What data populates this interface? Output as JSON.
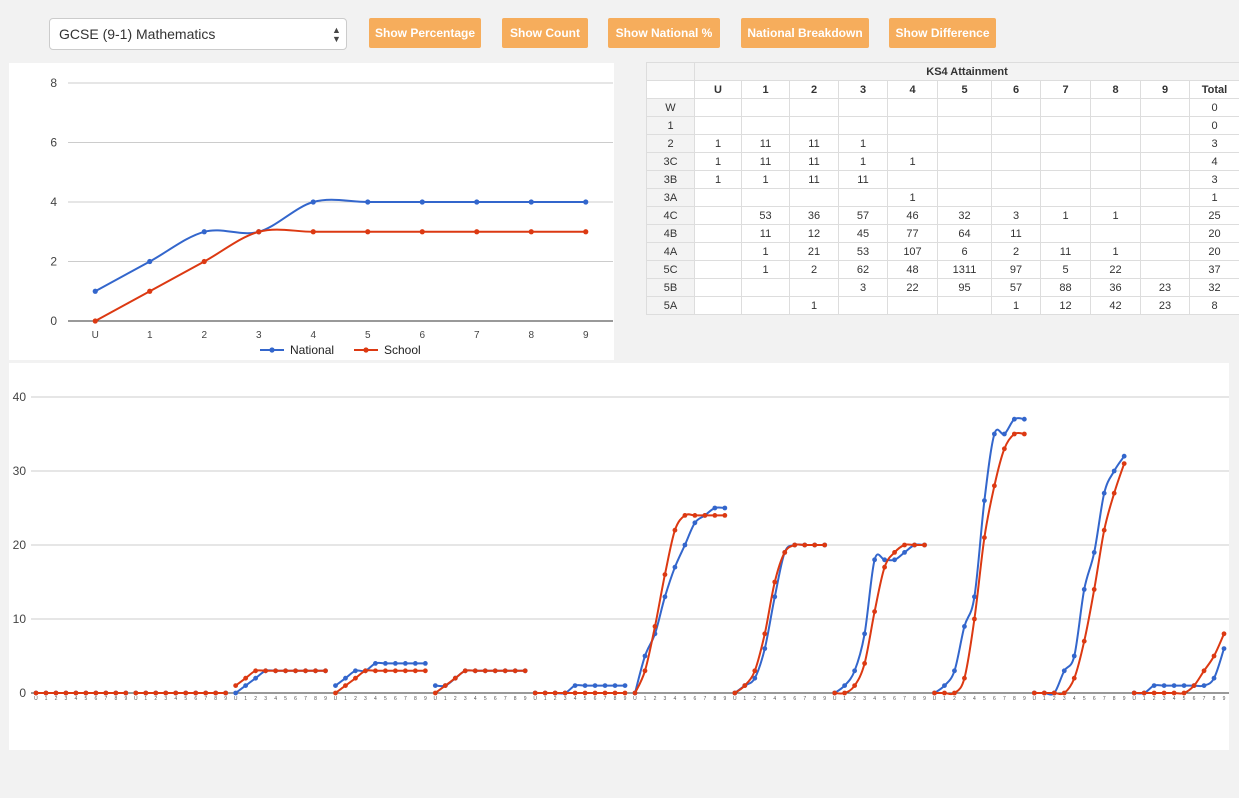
{
  "toolbar": {
    "subject_select": "GCSE (9-1) Mathematics",
    "buttons": [
      "Show Percentage",
      "Show Count",
      "Show National %",
      "National Breakdown",
      "Show Difference"
    ]
  },
  "colors": {
    "national": "#3366cc",
    "school": "#dc3912",
    "button": "#f6ad5c",
    "grid": "#cccccc"
  },
  "table": {
    "title": "KS4 Attainment",
    "columns": [
      "U",
      "1",
      "2",
      "3",
      "4",
      "5",
      "6",
      "7",
      "8",
      "9",
      "Total"
    ],
    "rows": [
      {
        "label": "W",
        "cells": [
          "",
          "",
          "",
          "",
          "",
          "",
          "",
          "",
          "",
          "",
          "0"
        ]
      },
      {
        "label": "1",
        "cells": [
          "",
          "",
          "",
          "",
          "",
          "",
          "",
          "",
          "",
          "",
          "0"
        ]
      },
      {
        "label": "2",
        "cells": [
          "1",
          "11",
          "11",
          "1",
          "",
          "",
          "",
          "",
          "",
          "",
          "3"
        ]
      },
      {
        "label": "3C",
        "cells": [
          "1",
          "11",
          "11",
          "1",
          "1",
          "",
          "",
          "",
          "",
          "",
          "4"
        ]
      },
      {
        "label": "3B",
        "cells": [
          "1",
          "1",
          "11",
          "11",
          "",
          "",
          "",
          "",
          "",
          "",
          "3"
        ]
      },
      {
        "label": "3A",
        "cells": [
          "",
          "",
          "",
          "",
          "1",
          "",
          "",
          "",
          "",
          "",
          "1"
        ]
      },
      {
        "label": "4C",
        "cells": [
          "",
          "53",
          "36",
          "57",
          "46",
          "32",
          "3",
          "1",
          "1",
          "",
          "25"
        ]
      },
      {
        "label": "4B",
        "cells": [
          "",
          "11",
          "12",
          "45",
          "77",
          "64",
          "11",
          "",
          "",
          "",
          "20"
        ]
      },
      {
        "label": "4A",
        "cells": [
          "",
          "1",
          "21",
          "53",
          "107",
          "6",
          "2",
          "11",
          "1",
          "",
          "20"
        ]
      },
      {
        "label": "5C",
        "cells": [
          "",
          "1",
          "2",
          "62",
          "48",
          "1311",
          "97",
          "5",
          "22",
          "",
          "37"
        ]
      },
      {
        "label": "5B",
        "cells": [
          "",
          "",
          "",
          "3",
          "22",
          "95",
          "57",
          "88",
          "36",
          "23",
          "32"
        ]
      },
      {
        "label": "5A",
        "cells": [
          "",
          "",
          "1",
          "",
          "",
          "",
          "1",
          "12",
          "42",
          "23",
          "8"
        ]
      }
    ]
  },
  "chart_data": [
    {
      "type": "line",
      "categories": [
        "U",
        "1",
        "2",
        "3",
        "4",
        "5",
        "6",
        "7",
        "8",
        "9"
      ],
      "ylim": [
        0,
        8
      ],
      "yticks": [
        "0",
        "2",
        "4",
        "6",
        "8"
      ],
      "grid": true,
      "legend_position": "bottom",
      "series": [
        {
          "name": "National",
          "values": [
            1,
            2,
            3,
            3,
            4,
            4,
            4,
            4,
            4,
            4
          ]
        },
        {
          "name": "School",
          "values": [
            0,
            1,
            2,
            3,
            3,
            3,
            3,
            3,
            3,
            3
          ]
        }
      ]
    },
    {
      "type": "line",
      "groups": 12,
      "categories": [
        "U",
        "1",
        "2",
        "3",
        "4",
        "5",
        "6",
        "7",
        "8",
        "9"
      ],
      "ylim": [
        0,
        40
      ],
      "yticks": [
        "0",
        "10",
        "20",
        "30",
        "40"
      ],
      "grid": true,
      "series": [
        {
          "name": "National",
          "groups": [
            [
              0,
              0,
              0,
              0,
              0,
              0,
              0,
              0,
              0,
              0
            ],
            [
              0,
              0,
              0,
              0,
              0,
              0,
              0,
              0,
              0,
              0
            ],
            [
              0,
              1,
              2,
              3,
              3,
              3,
              3,
              3,
              3,
              3
            ],
            [
              1,
              2,
              3,
              3,
              4,
              4,
              4,
              4,
              4,
              4
            ],
            [
              1,
              1,
              2,
              3,
              3,
              3,
              3,
              3,
              3,
              3
            ],
            [
              0,
              0,
              0,
              0,
              1,
              1,
              1,
              1,
              1,
              1
            ],
            [
              0,
              5,
              8,
              13,
              17,
              20,
              23,
              24,
              25,
              25
            ],
            [
              0,
              1,
              2,
              6,
              13,
              19,
              20,
              20,
              20,
              20
            ],
            [
              0,
              1,
              3,
              8,
              18,
              18,
              18,
              19,
              20,
              20
            ],
            [
              0,
              1,
              3,
              9,
              13,
              26,
              35,
              35,
              37,
              37
            ],
            [
              0,
              0,
              0,
              3,
              5,
              14,
              19,
              27,
              30,
              32
            ],
            [
              0,
              0,
              1,
              1,
              1,
              1,
              1,
              1,
              2,
              6
            ]
          ]
        },
        {
          "name": "School",
          "groups": [
            [
              0,
              0,
              0,
              0,
              0,
              0,
              0,
              0,
              0,
              0
            ],
            [
              0,
              0,
              0,
              0,
              0,
              0,
              0,
              0,
              0,
              0
            ],
            [
              1,
              2,
              3,
              3,
              3,
              3,
              3,
              3,
              3,
              3
            ],
            [
              0,
              1,
              2,
              3,
              3,
              3,
              3,
              3,
              3,
              3
            ],
            [
              0,
              1,
              2,
              3,
              3,
              3,
              3,
              3,
              3,
              3
            ],
            [
              0,
              0,
              0,
              0,
              0,
              0,
              0,
              0,
              0,
              0
            ],
            [
              0,
              3,
              9,
              16,
              22,
              24,
              24,
              24,
              24,
              24
            ],
            [
              0,
              1,
              3,
              8,
              15,
              19,
              20,
              20,
              20,
              20
            ],
            [
              0,
              0,
              1,
              4,
              11,
              17,
              19,
              20,
              20,
              20
            ],
            [
              0,
              0,
              0,
              2,
              10,
              21,
              28,
              33,
              35,
              35
            ],
            [
              0,
              0,
              0,
              0,
              2,
              7,
              14,
              22,
              27,
              31
            ],
            [
              0,
              0,
              0,
              0,
              0,
              0,
              1,
              3,
              5,
              8
            ]
          ]
        }
      ]
    }
  ]
}
